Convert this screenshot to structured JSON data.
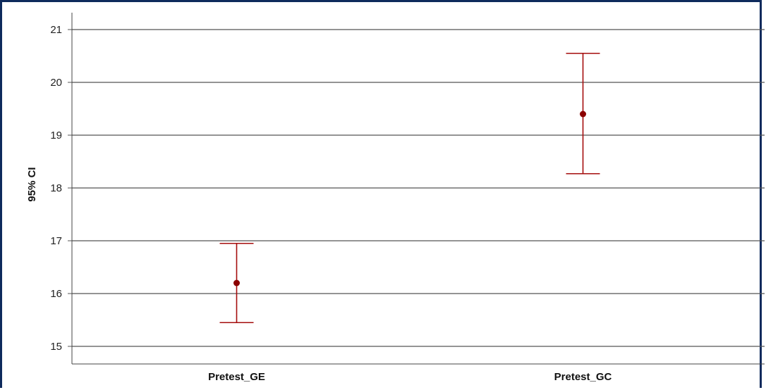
{
  "chart_data": {
    "type": "errorbar",
    "ylabel": "95% CI",
    "xlabel": "",
    "title": "",
    "ylim": [
      14.7,
      21.35
    ],
    "yticks": [
      15,
      16,
      17,
      18,
      19,
      20,
      21
    ],
    "grid": true,
    "categories": [
      "Pretest_GE",
      "Pretest_GC"
    ],
    "means": [
      16.2,
      19.4
    ],
    "lower": [
      15.45,
      18.27
    ],
    "upper": [
      16.95,
      20.55
    ],
    "color": "#a50d0d"
  },
  "colors": {
    "frame": "#0e2a5c",
    "grid": "#555555",
    "marker": "#8b0000",
    "errorbar": "#a50d0d"
  }
}
